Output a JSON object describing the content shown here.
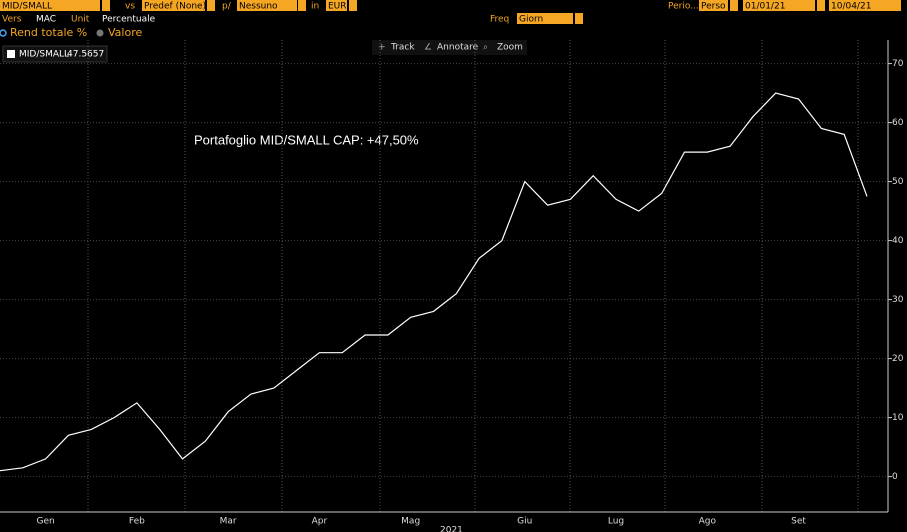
{
  "toolbar": {
    "security": "MID/SMALL",
    "vs": "vs",
    "benchmark": "Predef (None)",
    "per_label": "p/",
    "per": "Nessuno",
    "in_label": "in",
    "currency": "EUR",
    "period_label": "Perio...",
    "period": "Perso",
    "start": "01/01/21",
    "end": "10/04/21",
    "vers_label": "Vers",
    "vers": "MAC",
    "unit_label": "Unit",
    "unit": "Percentuale",
    "freq_label": "Freq",
    "freq": "Giorn",
    "option_1": "Rend totale %",
    "option_2": "Valore"
  },
  "chart_tools": [
    "Track",
    "Annotare",
    "Zoom"
  ],
  "chart_data": {
    "type": "line",
    "annotation": "Portafoglio MID/SMALL CAP: +47,50%",
    "x_axis_year": "2021",
    "categories": [
      null,
      null,
      "Gen",
      null,
      null,
      null,
      "Feb",
      null,
      null,
      null,
      "Mar",
      null,
      null,
      null,
      "Apr",
      null,
      null,
      null,
      "Mag",
      null,
      null,
      null,
      null,
      "Giu",
      null,
      null,
      null,
      "Lug",
      null,
      null,
      null,
      "Ago",
      null,
      null,
      null,
      "Set",
      null,
      null,
      null
    ],
    "series": [
      {
        "name": "MID/SMALL",
        "legend_value": 47.5657,
        "color": "#ffffff",
        "values": [
          1,
          1.5,
          3,
          7,
          8,
          10,
          12.5,
          8,
          3,
          6,
          11,
          14,
          15,
          18,
          21,
          21,
          24,
          24,
          27,
          28,
          31,
          37,
          40,
          50,
          46,
          47,
          51,
          47,
          45,
          48,
          55,
          55,
          56,
          61,
          65,
          64,
          59,
          58,
          47.5
        ]
      }
    ],
    "ylim": [
      -6,
      74
    ],
    "yticks": [
      0,
      10,
      20,
      30,
      40,
      50,
      60,
      70
    ],
    "grid": true
  }
}
